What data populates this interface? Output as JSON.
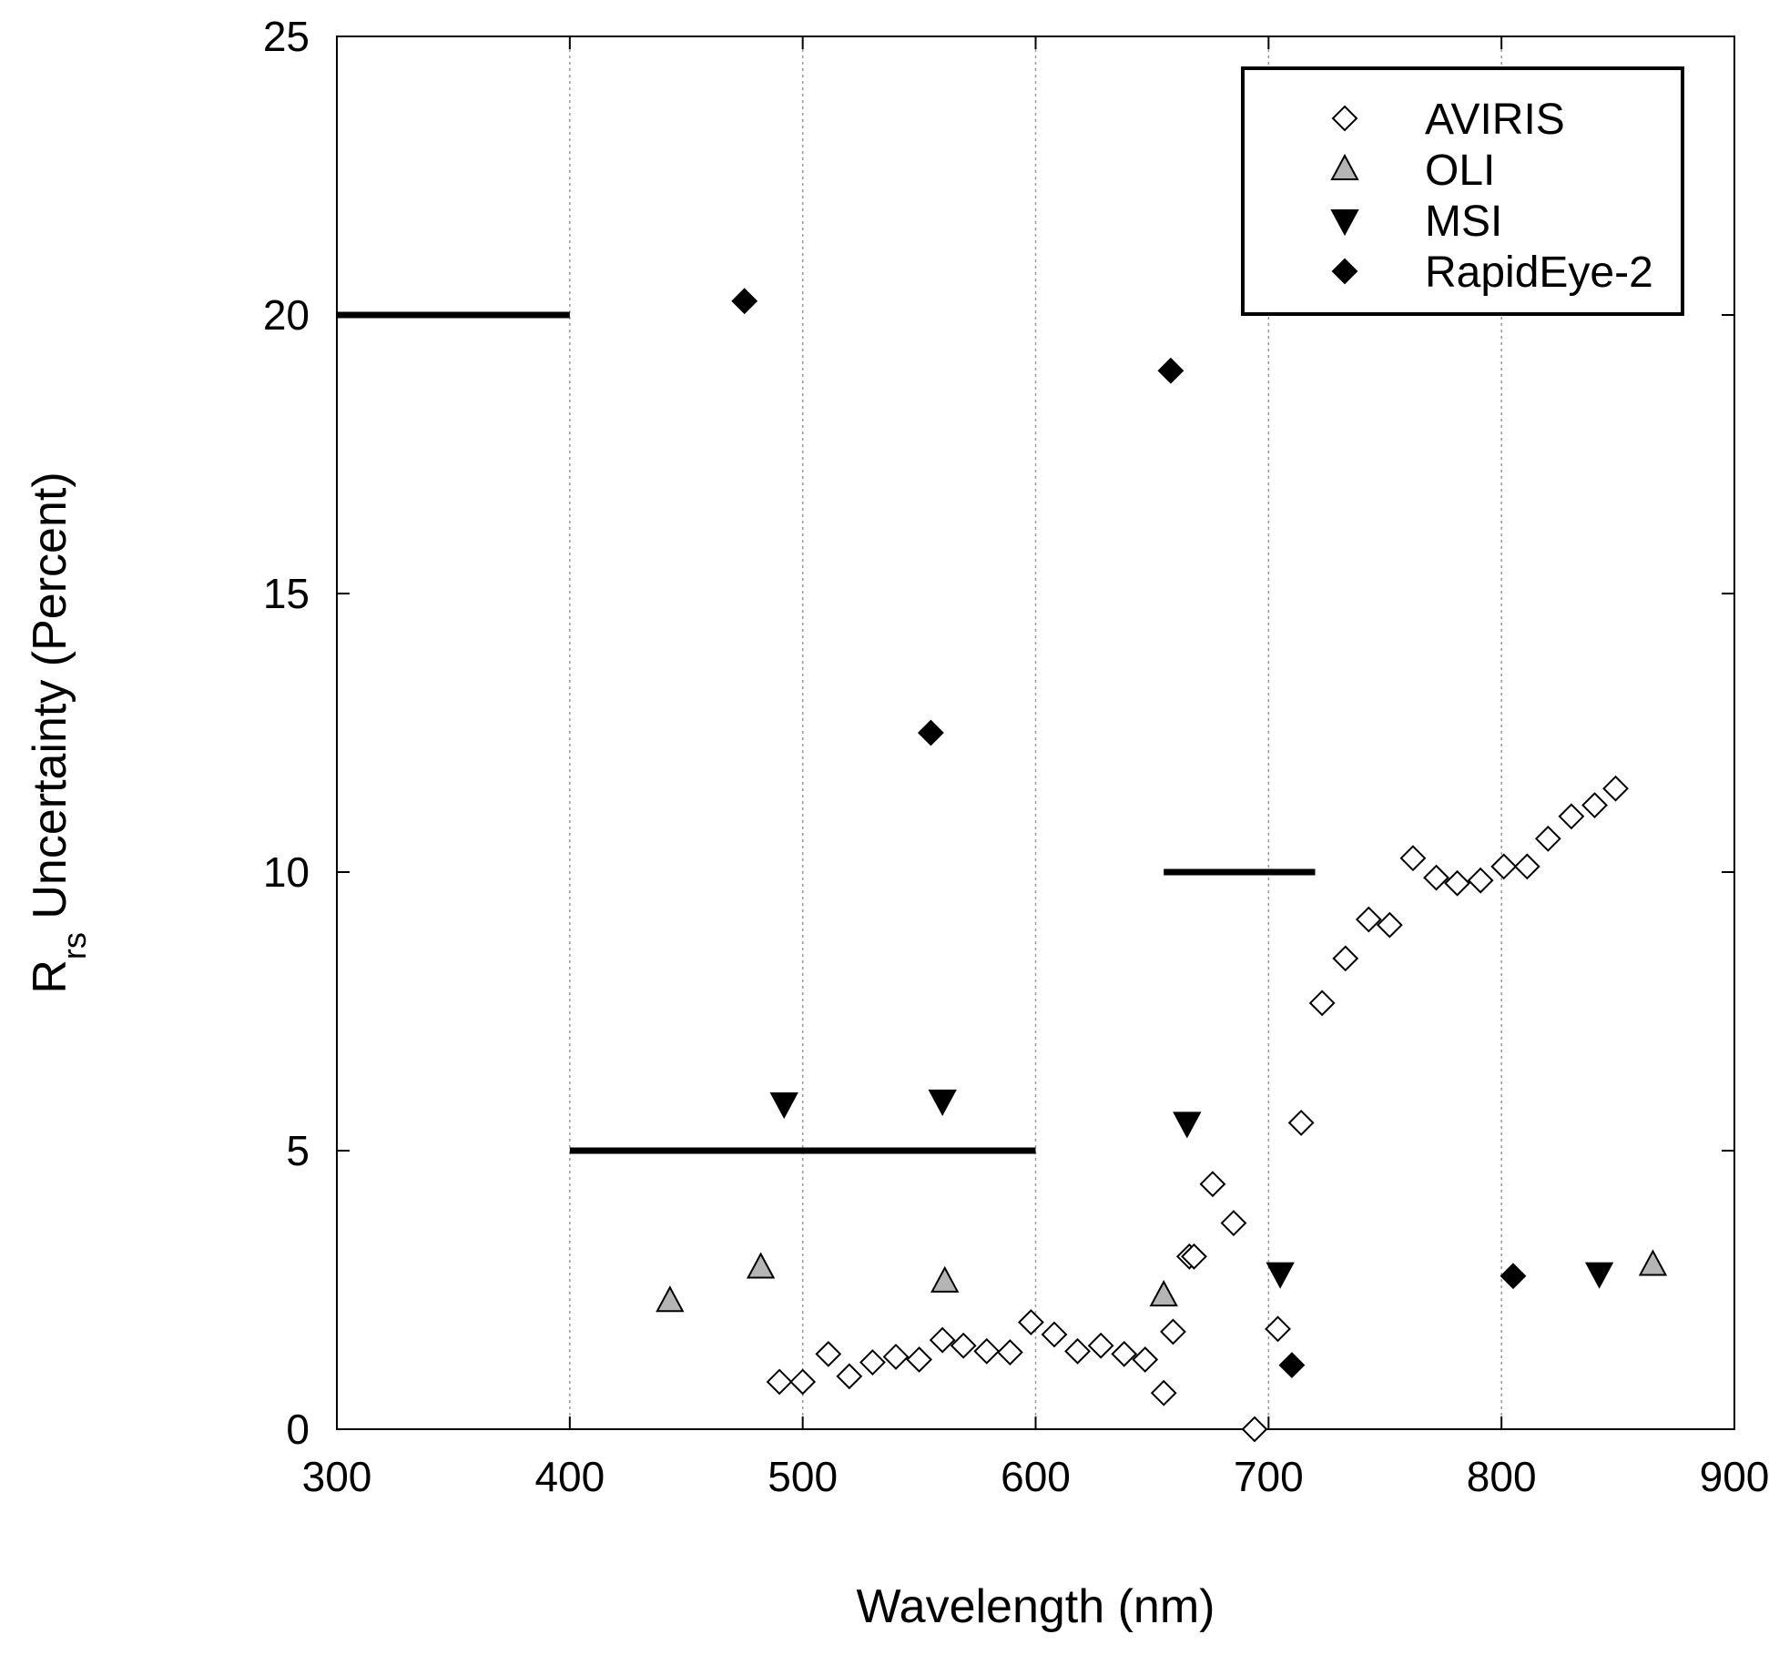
{
  "chart_data": {
    "type": "scatter",
    "xlabel": "Wavelength (nm)",
    "ylabel": {
      "main": "R",
      "sub": "rs",
      "rest": " Uncertainty (Percent)"
    },
    "xlim": [
      300,
      900
    ],
    "ylim": [
      0,
      25
    ],
    "xticks": [
      300,
      400,
      500,
      600,
      700,
      800,
      900
    ],
    "yticks": [
      0,
      5,
      10,
      15,
      20,
      25
    ],
    "grid": "vertical dotted lines at x ticks",
    "legend_position": "top-right",
    "series": [
      {
        "name": "AVIRIS",
        "marker": "open-diamond",
        "color": "#000000",
        "fill": "#ffffff",
        "points": [
          [
            490,
            0.85
          ],
          [
            500,
            0.85
          ],
          [
            511,
            1.35
          ],
          [
            520,
            0.95
          ],
          [
            530,
            1.2
          ],
          [
            540,
            1.3
          ],
          [
            550,
            1.25
          ],
          [
            560,
            1.6
          ],
          [
            569,
            1.5
          ],
          [
            579,
            1.4
          ],
          [
            589,
            1.38
          ],
          [
            598,
            1.92
          ],
          [
            608,
            1.7
          ],
          [
            618,
            1.4
          ],
          [
            628,
            1.5
          ],
          [
            638,
            1.35
          ],
          [
            647,
            1.25
          ],
          [
            655,
            0.65
          ],
          [
            659,
            1.75
          ],
          [
            666,
            3.1
          ],
          [
            668,
            3.1
          ],
          [
            676,
            4.4
          ],
          [
            685,
            3.7
          ],
          [
            694,
            0.0
          ],
          [
            704,
            1.8
          ],
          [
            714,
            5.5
          ],
          [
            723,
            7.65
          ],
          [
            733,
            8.45
          ],
          [
            743,
            9.15
          ],
          [
            752,
            9.05
          ],
          [
            762,
            10.25
          ],
          [
            772,
            9.9
          ],
          [
            781,
            9.8
          ],
          [
            791,
            9.85
          ],
          [
            801,
            10.1
          ],
          [
            811,
            10.1
          ],
          [
            820,
            10.6
          ],
          [
            830,
            11.0
          ],
          [
            840,
            11.2
          ],
          [
            849,
            11.5
          ]
        ]
      },
      {
        "name": "OLI",
        "marker": "triangle-up",
        "color": "#000000",
        "fill": "#b5b5b5",
        "points": [
          [
            443,
            2.3
          ],
          [
            482,
            2.9
          ],
          [
            561,
            2.65
          ],
          [
            655,
            2.4
          ],
          [
            865,
            2.95
          ]
        ]
      },
      {
        "name": "MSI",
        "marker": "triangle-down",
        "color": "#000000",
        "fill": "#000000",
        "points": [
          [
            492,
            5.85
          ],
          [
            560,
            5.9
          ],
          [
            665,
            5.5
          ],
          [
            705,
            2.8
          ],
          [
            842,
            2.8
          ]
        ]
      },
      {
        "name": "RapidEye-2",
        "marker": "filled-diamond",
        "color": "#000000",
        "fill": "#000000",
        "points": [
          [
            475,
            20.25
          ],
          [
            555,
            12.5
          ],
          [
            658,
            19.0
          ],
          [
            710,
            1.15
          ],
          [
            805,
            2.75
          ]
        ]
      }
    ],
    "reference_lines": [
      {
        "x": [
          300,
          400
        ],
        "y": 20
      },
      {
        "x": [
          400,
          600
        ],
        "y": 5
      },
      {
        "x": [
          655,
          720
        ],
        "y": 10
      }
    ]
  }
}
